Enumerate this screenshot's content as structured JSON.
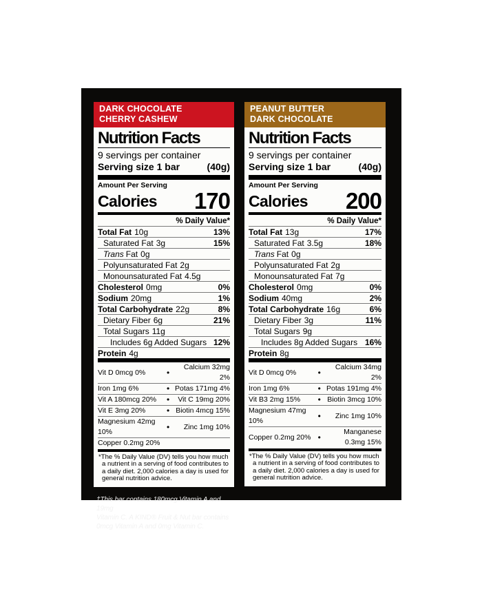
{
  "page": {
    "background": "#ffffff",
    "package_color": "#0b0a08"
  },
  "bottom_note_lines": [
    "†This bar contains 180mcg Vitamin A and 19mg",
    "Vitamin C. A KIND® Fruit & Nut bar contains",
    "0mcg Vitamin A and 0mg Vitamin C."
  ],
  "labels": [
    {
      "flavor_lines": [
        "DARK CHOCOLATE",
        "CHERRY CASHEW"
      ],
      "header_color": "#cc1420",
      "title": "Nutrition Facts",
      "servings": "9 servings per container",
      "serving_size": {
        "label": "Serving size 1 bar",
        "weight": "(40g)"
      },
      "amount_per_serving": "Amount Per Serving",
      "calories": {
        "label": "Calories",
        "value": "170"
      },
      "daily_value_note": "% Daily Value*",
      "nutrients": [
        {
          "name": "Total Fat",
          "amount": "10g",
          "dv": "13%",
          "bold": true,
          "indent": 0
        },
        {
          "name": "Saturated Fat",
          "amount": "3g",
          "dv": "15%",
          "bold": false,
          "indent": 1
        },
        {
          "name_italic": "Trans",
          "name": "Fat",
          "amount": "0g",
          "dv": "",
          "bold": false,
          "indent": 1
        },
        {
          "name": "Polyunsaturated Fat",
          "amount": "2g",
          "dv": "",
          "bold": false,
          "indent": 1
        },
        {
          "name": "Monounsaturated Fat",
          "amount": "4.5g",
          "dv": "",
          "bold": false,
          "indent": 1
        },
        {
          "name": "Cholesterol",
          "amount": "0mg",
          "dv": "0%",
          "bold": true,
          "indent": 0
        },
        {
          "name": "Sodium",
          "amount": "20mg",
          "dv": "1%",
          "bold": true,
          "indent": 0
        },
        {
          "name": "Total Carbohydrate",
          "amount": "22g",
          "dv": "8%",
          "bold": true,
          "indent": 0
        },
        {
          "name": "Dietary Fiber",
          "amount": "6g",
          "dv": "21%",
          "bold": false,
          "indent": 1
        },
        {
          "name": "Total Sugars",
          "amount": "11g",
          "dv": "",
          "bold": false,
          "indent": 1
        },
        {
          "name": "Includes 6g Added Sugars",
          "amount": "",
          "dv": "12%",
          "bold": false,
          "indent": 2
        },
        {
          "name": "Protein",
          "amount": "4g",
          "dv": "",
          "bold": true,
          "indent": 0
        }
      ],
      "vitamins": [
        {
          "left": "Vit D 0mcg 0%",
          "bullet": "•",
          "right": "Calcium 32mg 2%"
        },
        {
          "left": "Iron 1mg 6%",
          "bullet": "•",
          "right": "Potas 171mg 4%"
        },
        {
          "left": "Vit A 180mcg 20%",
          "bullet": "•",
          "right": "Vit C 19mg 20%"
        },
        {
          "left": "Vit E 3mg 20%",
          "bullet": "•",
          "right": "Biotin 4mcg 15%"
        },
        {
          "left": "Magnesium 42mg 10%",
          "bullet": "•",
          "right": "Zinc 1mg 10%"
        },
        {
          "left": "Copper 0.2mg 20%",
          "bullet": "",
          "right": ""
        }
      ],
      "footnote": "*The % Daily Value (DV) tells you how much a nutrient in a serving of food contributes to a daily diet. 2,000 calories a day is used for general nutrition advice."
    },
    {
      "flavor_lines": [
        "PEANUT BUTTER",
        "DARK CHOCOLATE"
      ],
      "header_color": "#9c671a",
      "title": "Nutrition Facts",
      "servings": "9 servings per container",
      "serving_size": {
        "label": "Serving size 1 bar",
        "weight": "(40g)"
      },
      "amount_per_serving": "Amount Per Serving",
      "calories": {
        "label": "Calories",
        "value": "200"
      },
      "daily_value_note": "% Daily Value*",
      "nutrients": [
        {
          "name": "Total Fat",
          "amount": "13g",
          "dv": "17%",
          "bold": true,
          "indent": 0
        },
        {
          "name": "Saturated Fat",
          "amount": "3.5g",
          "dv": "18%",
          "bold": false,
          "indent": 1
        },
        {
          "name_italic": "Trans",
          "name": "Fat",
          "amount": "0g",
          "dv": "",
          "bold": false,
          "indent": 1
        },
        {
          "name": "Polyunsaturated Fat",
          "amount": "2g",
          "dv": "",
          "bold": false,
          "indent": 1
        },
        {
          "name": "Monounsaturated Fat",
          "amount": "7g",
          "dv": "",
          "bold": false,
          "indent": 1
        },
        {
          "name": "Cholesterol",
          "amount": "0mg",
          "dv": "0%",
          "bold": true,
          "indent": 0
        },
        {
          "name": "Sodium",
          "amount": "40mg",
          "dv": "2%",
          "bold": true,
          "indent": 0
        },
        {
          "name": "Total Carbohydrate",
          "amount": "16g",
          "dv": "6%",
          "bold": true,
          "indent": 0
        },
        {
          "name": "Dietary Fiber",
          "amount": "3g",
          "dv": "11%",
          "bold": false,
          "indent": 1
        },
        {
          "name": "Total Sugars",
          "amount": "9g",
          "dv": "",
          "bold": false,
          "indent": 1
        },
        {
          "name": "Includes 8g Added Sugars",
          "amount": "",
          "dv": "16%",
          "bold": false,
          "indent": 2
        },
        {
          "name": "Protein",
          "amount": "8g",
          "dv": "",
          "bold": true,
          "indent": 0
        }
      ],
      "vitamins": [
        {
          "left": "Vit D 0mcg 0%",
          "bullet": "•",
          "right": "Calcium 34mg 2%"
        },
        {
          "left": "Iron 1mg 6%",
          "bullet": "•",
          "right": "Potas 191mg 4%"
        },
        {
          "left": "Vit B3 2mg 15%",
          "bullet": "•",
          "right": "Biotin 3mcg 10%"
        },
        {
          "left": "Magnesium 47mg 10%",
          "bullet": "•",
          "right": "Zinc 1mg 10%"
        },
        {
          "left": "Copper 0.2mg 20%",
          "bullet": "•",
          "right": "Manganese 0.3mg 15%"
        }
      ],
      "footnote": "*The % Daily Value (DV) tells you how much a nutrient in a serving of food contributes to a daily diet. 2,000 calories a day is used for general nutrition advice."
    }
  ]
}
